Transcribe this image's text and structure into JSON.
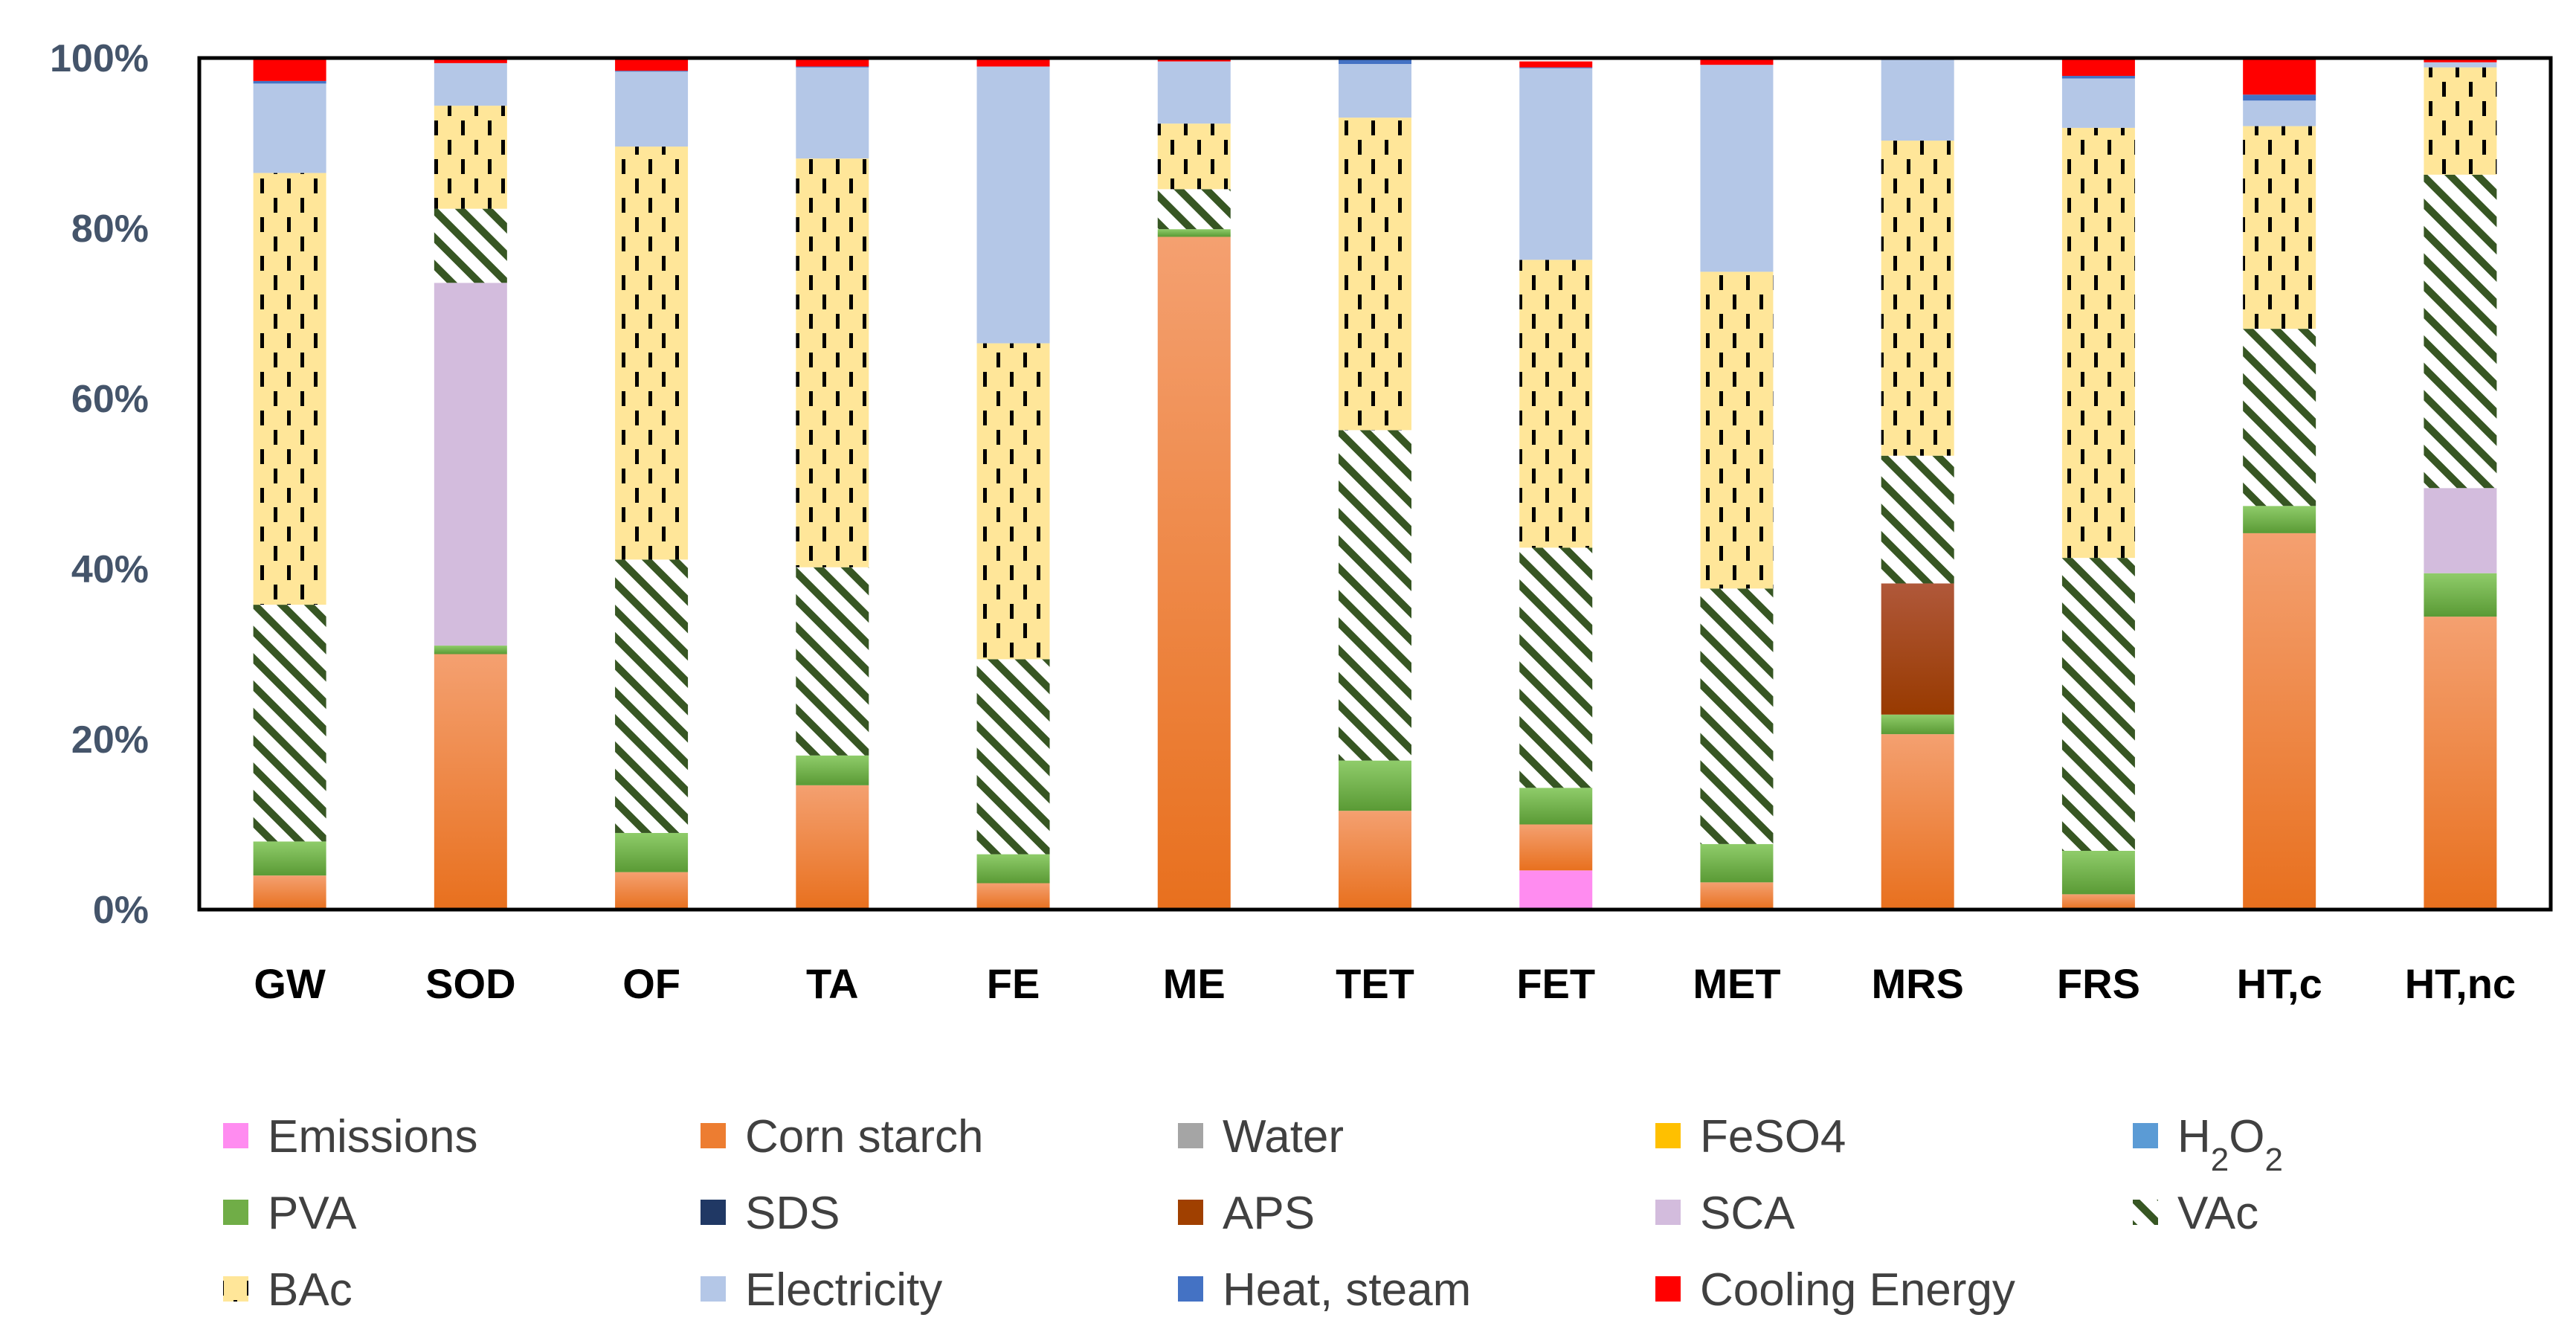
{
  "chart_data": {
    "type": "bar",
    "stacked": true,
    "normalized": true,
    "categories": [
      "GW",
      "SOD",
      "OF",
      "TA",
      "FE",
      "ME",
      "TET",
      "FET",
      "MET",
      "MRS",
      "FRS",
      "HT,c",
      "HT,nc"
    ],
    "yticks": [
      "0%",
      "20%",
      "40%",
      "60%",
      "80%",
      "100%"
    ],
    "ylim": [
      0,
      100
    ],
    "legend_position": "bottom",
    "colors": {
      "emissions": "#ff8cf0",
      "corn_starch": "#ed7d31",
      "water": "#a5a5a5",
      "feso4": "#ffc000",
      "h2o2": "#5b9bd5",
      "pva": "#70ad47",
      "sds": "#203864",
      "aps": "#a04000",
      "sca": "#d3bcdd",
      "vac": "#375623",
      "bac": "#ffe699",
      "electricity": "#b4c7e7",
      "heat_steam": "#4472c4",
      "cooling": "#ff0000"
    },
    "series": [
      {
        "name": "Emissions",
        "key": "emissions",
        "pattern": "solid",
        "values": [
          0,
          0,
          0,
          0,
          0,
          0,
          0,
          4.6,
          0,
          0,
          0,
          0,
          0
        ]
      },
      {
        "name": "Corn starch",
        "key": "corn_starch",
        "pattern": "gradient",
        "values": [
          4,
          30,
          4.4,
          14.6,
          3.1,
          79,
          11.6,
          5.4,
          3.2,
          20.6,
          1.8,
          44.2,
          34.4
        ]
      },
      {
        "name": "Water",
        "key": "water",
        "pattern": "solid",
        "values": [
          0,
          0,
          0,
          0,
          0,
          0,
          0,
          0,
          0,
          0,
          0,
          0,
          0
        ]
      },
      {
        "name": "FeSO4",
        "key": "feso4",
        "pattern": "solid",
        "values": [
          0,
          0,
          0,
          0,
          0,
          0,
          0,
          0,
          0,
          0,
          0,
          0,
          0
        ]
      },
      {
        "name": "H2O2",
        "key": "h2o2",
        "pattern": "solid",
        "values": [
          0,
          0,
          0,
          0,
          0,
          0,
          0,
          0,
          0,
          0,
          0,
          0,
          0
        ]
      },
      {
        "name": "PVA",
        "key": "pva",
        "pattern": "gradient",
        "values": [
          4,
          1,
          4.6,
          3.5,
          3.4,
          0.9,
          5.9,
          4.3,
          4.5,
          2.3,
          5.1,
          3.2,
          5.1
        ]
      },
      {
        "name": "SDS",
        "key": "sds",
        "pattern": "solid",
        "values": [
          0,
          0,
          0,
          0,
          0,
          0,
          0,
          0,
          0,
          0,
          0,
          0,
          0
        ]
      },
      {
        "name": "APS",
        "key": "aps",
        "pattern": "gradient",
        "values": [
          0,
          0,
          0,
          0,
          0,
          0,
          0,
          0,
          0,
          15.4,
          0,
          0,
          0
        ]
      },
      {
        "name": "SCA",
        "key": "sca",
        "pattern": "solid",
        "values": [
          0,
          42.6,
          0,
          0,
          0,
          0,
          0,
          0,
          0,
          0,
          0,
          0,
          10
        ]
      },
      {
        "name": "VAc",
        "key": "vac",
        "pattern": "hatch",
        "values": [
          27.8,
          8.7,
          32.1,
          22.1,
          22.9,
          4.7,
          38.8,
          28.2,
          30,
          15,
          34.4,
          20.8,
          36.8
        ]
      },
      {
        "name": "BAc",
        "key": "bac",
        "pattern": "dash",
        "values": [
          50.7,
          12.1,
          48.5,
          48,
          37.1,
          7.7,
          36.7,
          33.8,
          37.2,
          37,
          50.5,
          23.8,
          12.6
        ]
      },
      {
        "name": "Electricity",
        "key": "electricity",
        "pattern": "solid",
        "values": [
          10.5,
          5,
          8.8,
          10.7,
          32.5,
          7.3,
          6.3,
          22.5,
          24.3,
          9.6,
          5.8,
          3,
          0.6
        ]
      },
      {
        "name": "Heat, steam",
        "key": "heat_steam",
        "pattern": "solid",
        "values": [
          0.3,
          0,
          0.1,
          0.1,
          0,
          0,
          0.5,
          0.1,
          0,
          0,
          0.3,
          0.7,
          0
        ]
      },
      {
        "name": "Cooling Energy",
        "key": "cooling",
        "pattern": "solid",
        "values": [
          2.7,
          0.6,
          1.5,
          1,
          1,
          0.4,
          0.2,
          0.7,
          0.8,
          0.1,
          2.1,
          4.3,
          0.5
        ]
      }
    ],
    "legend": [
      {
        "label": "Emissions",
        "key": "emissions",
        "pattern": "solid",
        "col": 0,
        "row": 0
      },
      {
        "label": "Corn starch",
        "key": "corn_starch",
        "pattern": "solid",
        "col": 1,
        "row": 0
      },
      {
        "label": "Water",
        "key": "water",
        "pattern": "solid",
        "col": 2,
        "row": 0
      },
      {
        "label": "FeSO4",
        "key": "feso4",
        "pattern": "solid",
        "col": 3,
        "row": 0
      },
      {
        "label": "H2O2",
        "key": "h2o2",
        "pattern": "solid",
        "col": 4,
        "row": 0,
        "formula": true
      },
      {
        "label": "PVA",
        "key": "pva",
        "pattern": "solid",
        "col": 0,
        "row": 1
      },
      {
        "label": "SDS",
        "key": "sds",
        "pattern": "solid",
        "col": 1,
        "row": 1
      },
      {
        "label": "APS",
        "key": "aps",
        "pattern": "solid",
        "col": 2,
        "row": 1
      },
      {
        "label": "SCA",
        "key": "sca",
        "pattern": "solid",
        "col": 3,
        "row": 1
      },
      {
        "label": "VAc",
        "key": "vac",
        "pattern": "hatch",
        "col": 4,
        "row": 1
      },
      {
        "label": "BAc",
        "key": "bac",
        "pattern": "dash",
        "col": 0,
        "row": 2
      },
      {
        "label": "Electricity",
        "key": "electricity",
        "pattern": "solid",
        "col": 1,
        "row": 2
      },
      {
        "label": "Heat, steam",
        "key": "heat_steam",
        "pattern": "solid",
        "col": 2,
        "row": 2
      },
      {
        "label": "Cooling Energy",
        "key": "cooling",
        "pattern": "solid",
        "col": 3,
        "row": 2
      }
    ]
  }
}
